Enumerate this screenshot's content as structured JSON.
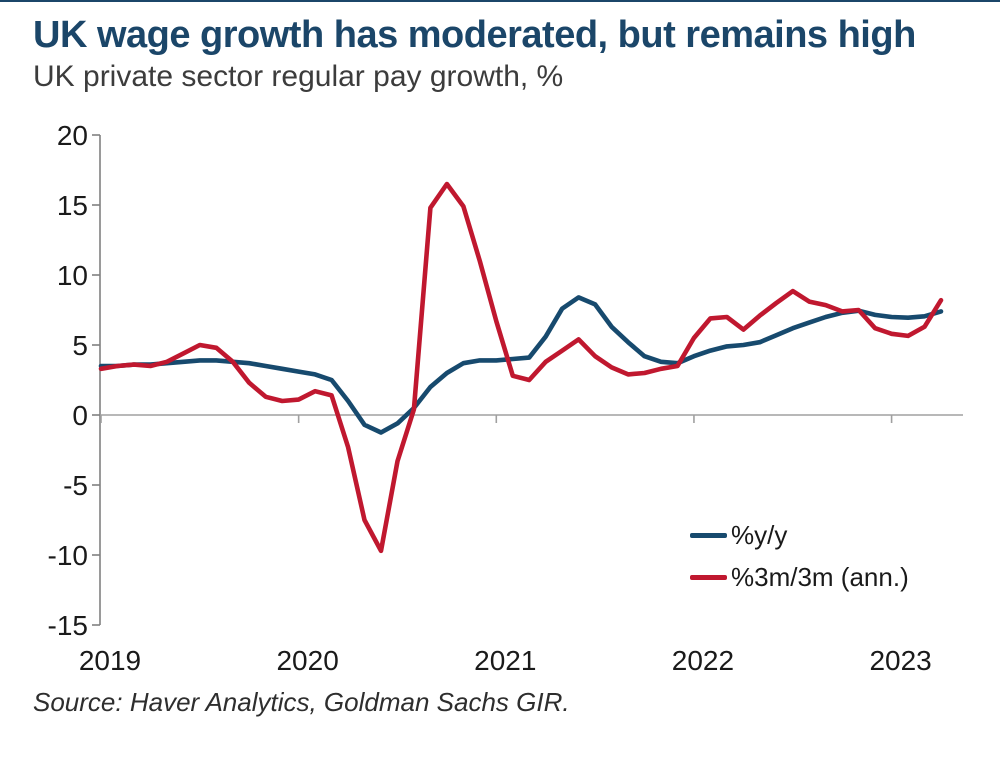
{
  "page": {
    "title": "UK wage growth has moderated, but remains high",
    "subtitle": "UK private sector regular pay growth, %",
    "source": "Source: Haver Analytics, Goldman Sachs GIR."
  },
  "colors": {
    "title_navy": "#1B4669",
    "line_blue": "#174A6E",
    "line_red": "#C0182F",
    "axis_gray": "#808080",
    "zero_line_gray": "#A0A0A0",
    "tick_text": "#1A1A1A"
  },
  "chart_data": {
    "type": "line",
    "title": "UK wage growth has moderated, but remains high",
    "subtitle": "UK private sector regular pay growth, %",
    "xlabel": "",
    "ylabel": "",
    "ylim": [
      -15,
      20
    ],
    "y_ticks": [
      20,
      15,
      10,
      5,
      0,
      -5,
      -10,
      -15
    ],
    "x_tick_labels": [
      "2019",
      "2020",
      "2021",
      "2022",
      "2023"
    ],
    "grid": false,
    "zero_line": true,
    "legend_position": "inside-lower-right",
    "x": [
      "2019-01",
      "2019-02",
      "2019-03",
      "2019-04",
      "2019-05",
      "2019-06",
      "2019-07",
      "2019-08",
      "2019-09",
      "2019-10",
      "2019-11",
      "2019-12",
      "2020-01",
      "2020-02",
      "2020-03",
      "2020-04",
      "2020-05",
      "2020-06",
      "2020-07",
      "2020-08",
      "2020-09",
      "2020-10",
      "2020-11",
      "2020-12",
      "2021-01",
      "2021-02",
      "2021-03",
      "2021-04",
      "2021-05",
      "2021-06",
      "2021-07",
      "2021-08",
      "2021-09",
      "2021-10",
      "2021-11",
      "2021-12",
      "2022-01",
      "2022-02",
      "2022-03",
      "2022-04",
      "2022-05",
      "2022-06",
      "2022-07",
      "2022-08",
      "2022-09",
      "2022-10",
      "2022-11",
      "2022-12",
      "2023-01",
      "2023-02",
      "2023-03",
      "2023-04"
    ],
    "series": [
      {
        "name": "%y/y",
        "color": "#174A6E",
        "values": [
          3.5,
          3.5,
          3.6,
          3.6,
          3.7,
          3.8,
          3.9,
          3.9,
          3.8,
          3.7,
          3.5,
          3.3,
          3.1,
          2.9,
          2.5,
          1.0,
          -0.7,
          -1.25,
          -0.6,
          0.5,
          2.0,
          3.0,
          3.7,
          3.9,
          3.9,
          4.0,
          4.1,
          5.6,
          7.6,
          8.4,
          7.9,
          6.3,
          5.2,
          4.2,
          3.8,
          3.7,
          4.2,
          4.6,
          4.9,
          5.0,
          5.2,
          5.7,
          6.2,
          6.6,
          7.0,
          7.3,
          7.45,
          7.15,
          7.0,
          6.95,
          7.05,
          7.4
        ]
      },
      {
        "name": "%3m/3m (ann.)",
        "color": "#C0182F",
        "values": [
          3.3,
          3.5,
          3.6,
          3.5,
          3.8,
          4.4,
          5.0,
          4.8,
          3.8,
          2.3,
          1.3,
          1.0,
          1.1,
          1.7,
          1.4,
          -2.3,
          -7.5,
          -9.7,
          -3.3,
          0.4,
          14.8,
          16.5,
          14.9,
          11.0,
          6.7,
          2.8,
          2.5,
          3.8,
          4.6,
          5.4,
          4.2,
          3.4,
          2.9,
          3.0,
          3.3,
          3.5,
          5.5,
          6.9,
          7.0,
          6.1,
          7.1,
          8.0,
          8.85,
          8.1,
          7.85,
          7.4,
          7.5,
          6.2,
          5.8,
          5.65,
          6.3,
          8.2
        ]
      }
    ]
  }
}
